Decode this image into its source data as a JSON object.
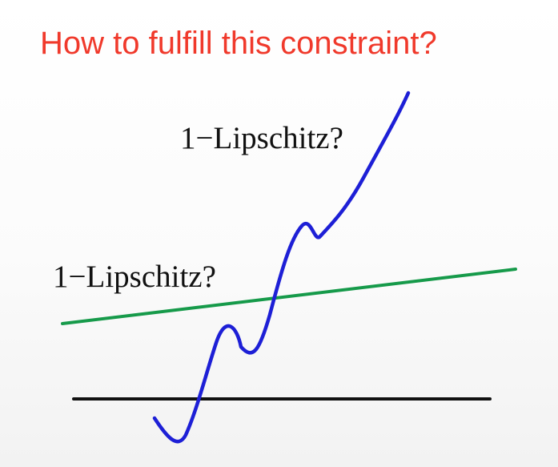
{
  "slide": {
    "title": "How to fulfill this constraint?",
    "labels": {
      "upper": "1−Lipschitz?",
      "lower": "1−Lipschitz?"
    }
  },
  "colors": {
    "title": "#f0392b",
    "steep_curve": "#1d1fd6",
    "shallow_line": "#169a4a",
    "baseline": "#111111"
  }
}
